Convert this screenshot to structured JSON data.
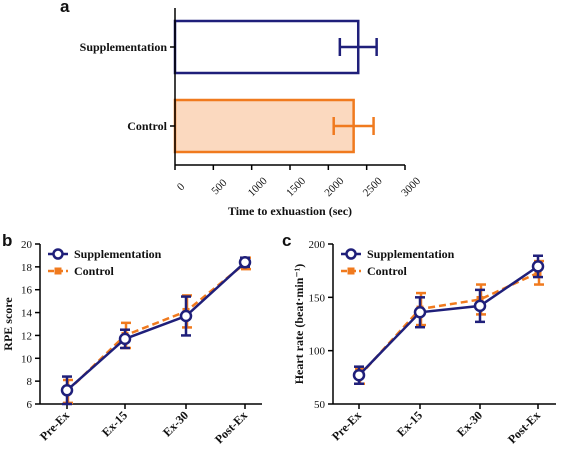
{
  "colors": {
    "supplementation": "#1f1f7a",
    "control": "#f07a1e",
    "control_fill": "#fbd9bf",
    "axis": "#000000"
  },
  "chart_data": [
    {
      "panel": "a",
      "type": "bar",
      "orientation": "horizontal",
      "categories": [
        "Supplementation",
        "Control"
      ],
      "values": [
        2390,
        2330
      ],
      "error": [
        240,
        260
      ],
      "xlabel": "Time to exhuastion (sec)",
      "xlim": [
        0,
        3000
      ],
      "xticks": [
        "0",
        "500",
        "1000",
        "1500",
        "2000",
        "2500",
        "3000"
      ]
    },
    {
      "panel": "b",
      "type": "line",
      "categories": [
        "Pre-Ex",
        "Ex-15",
        "Ex-30",
        "Post-Ex"
      ],
      "series": [
        {
          "name": "Supplementation",
          "values": [
            7.2,
            11.7,
            13.7,
            18.4
          ],
          "error": [
            1.2,
            0.8,
            1.7,
            0.4
          ]
        },
        {
          "name": "Control",
          "values": [
            7.1,
            12.0,
            14.1,
            18.3
          ],
          "error": [
            1.0,
            1.1,
            1.4,
            0.5
          ]
        }
      ],
      "ylabel": "RPE score",
      "ylim": [
        6,
        20
      ],
      "yticks": [
        "6",
        "8",
        "10",
        "12",
        "14",
        "16",
        "18",
        "20"
      ],
      "legend": "top-left"
    },
    {
      "panel": "c",
      "type": "line",
      "categories": [
        "Pre-Ex",
        "Ex-15",
        "Ex-30",
        "Post-Ex"
      ],
      "series": [
        {
          "name": "Supplementation",
          "values": [
            77,
            136,
            142,
            179
          ],
          "error": [
            8,
            14,
            15,
            10
          ]
        },
        {
          "name": "Control",
          "values": [
            76,
            139,
            148,
            173
          ],
          "error": [
            7,
            15,
            14,
            11
          ]
        }
      ],
      "ylabel": "Heart rate (beat·min⁻¹)",
      "ylim": [
        50,
        200
      ],
      "yticks": [
        "50",
        "100",
        "150",
        "200"
      ],
      "legend": "top-left"
    }
  ]
}
